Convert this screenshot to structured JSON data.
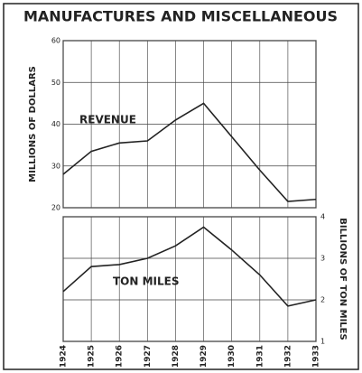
{
  "title": "MANUFACTURES AND MISCELLANEOUS",
  "chart_data": [
    {
      "type": "line",
      "ylabel": "MILLIONS OF DOLLARS",
      "ylim": [
        20,
        60
      ],
      "yticks": [
        20,
        30,
        40,
        50,
        60
      ],
      "grid": true,
      "axis_side": "left",
      "series": [
        {
          "name": "REVENUE",
          "color": "#222222",
          "values": [
            28,
            33.5,
            35.5,
            36,
            41,
            45,
            37,
            29,
            21.5,
            22
          ]
        }
      ]
    },
    {
      "type": "line",
      "ylabel": "BILLIONS OF TON MILES",
      "ylim": [
        1,
        4
      ],
      "yticks": [
        1,
        2,
        3,
        4
      ],
      "grid": true,
      "axis_side": "right",
      "categories": [
        "1924",
        "1925",
        "1926",
        "1927",
        "1928",
        "1929",
        "1930",
        "1931",
        "1932",
        "1933"
      ],
      "series": [
        {
          "name": "TON MILES",
          "color": "#222222",
          "values": [
            2.2,
            2.8,
            2.85,
            3.0,
            3.3,
            3.75,
            3.2,
            2.6,
            1.85,
            2.0
          ]
        }
      ]
    }
  ]
}
